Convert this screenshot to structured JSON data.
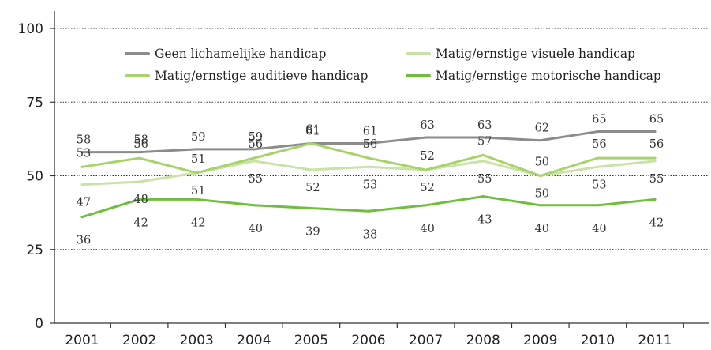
{
  "chart_data": {
    "type": "line",
    "title": "",
    "xlabel": "",
    "ylabel": "",
    "ylim": [
      0,
      100
    ],
    "yticks": [
      0,
      25,
      50,
      75,
      100
    ],
    "grid": "dotted horizontal at 25, 50, 75, 100",
    "legend_position": "top, inside plot, two columns",
    "categories": [
      "2001",
      "2002",
      "2003",
      "2004",
      "2005",
      "2006",
      "2007",
      "2008",
      "2009",
      "2010",
      "2011"
    ],
    "series": [
      {
        "name": "Geen lichamelijke handicap",
        "color": "#8c8c8c",
        "values": [
          58,
          58,
          59,
          59,
          61,
          61,
          63,
          63,
          62,
          65,
          65
        ],
        "labels": [
          "58",
          "58",
          "59",
          "59",
          "61",
          "61",
          "63",
          "63",
          "62",
          "65",
          "65"
        ]
      },
      {
        "name": "Matig/ernstige visuele handicap",
        "color": "#c9e3a6",
        "values": [
          47,
          48,
          51,
          55,
          52,
          53,
          52,
          55,
          50,
          53,
          55
        ],
        "labels": [
          "47",
          "48",
          "51",
          "55",
          "52",
          "53",
          "52",
          "55",
          "50",
          "53",
          "55"
        ]
      },
      {
        "name": "Matig/ernstige auditieve handicap",
        "color": "#a6d46a",
        "values": [
          53,
          56,
          51,
          56,
          61,
          56,
          52,
          57,
          50,
          56,
          56
        ],
        "labels": [
          "53",
          "56",
          "51",
          "56",
          "61",
          "56",
          "52",
          "57",
          "50",
          "56",
          "56"
        ]
      },
      {
        "name": "Matig/ernstige motorische handicap",
        "color": "#6fbf3c",
        "values": [
          36,
          42,
          42,
          40,
          39,
          38,
          40,
          43,
          40,
          40,
          42
        ],
        "labels": [
          "36",
          "42",
          "42",
          "40",
          "39",
          "38",
          "40",
          "43",
          "40",
          "40",
          "42"
        ]
      }
    ]
  }
}
